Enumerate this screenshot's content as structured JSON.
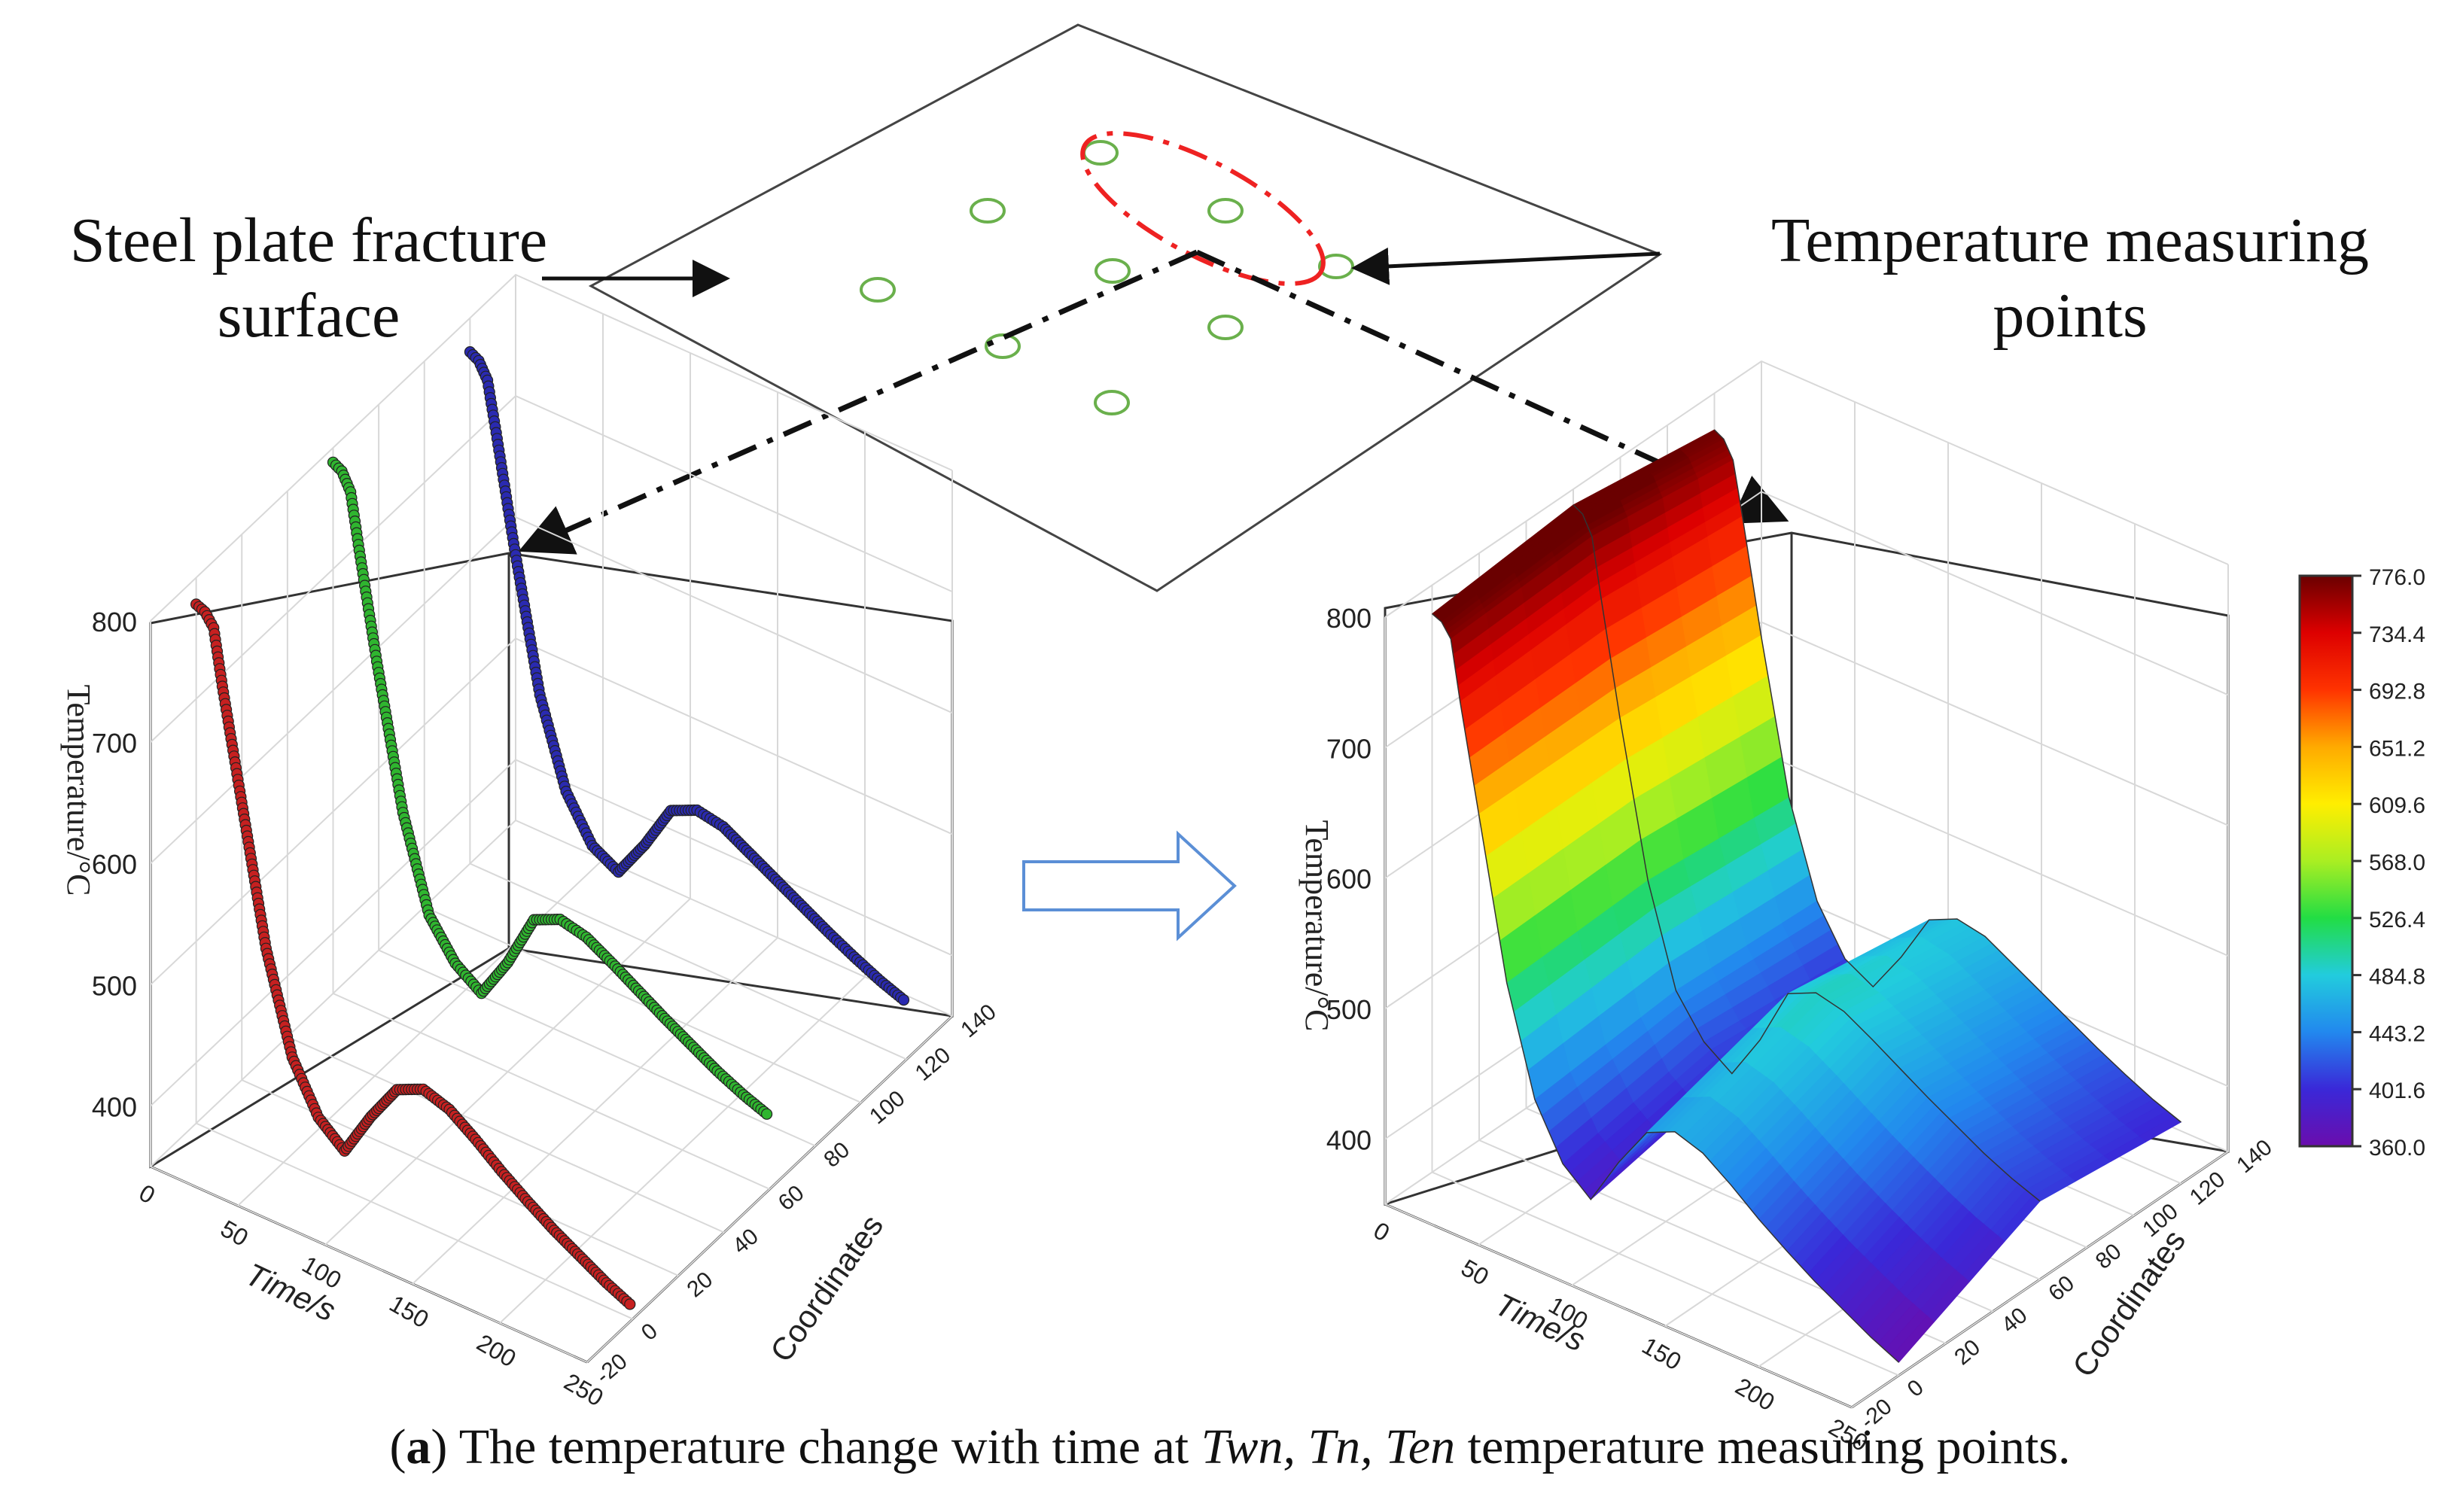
{
  "labels": {
    "left_annotation_line1": "Steel plate fracture",
    "left_annotation_line2": "surface",
    "right_annotation_line1": "Temperature measuring",
    "right_annotation_line2": "points"
  },
  "caption": {
    "open_paren": "(",
    "letter": "a",
    "close_paren": ") The temperature change with time at ",
    "points": "Twn, Tn, Ten",
    "rest": " temperature measuring points."
  },
  "colors": {
    "red_series": "#c62020",
    "green_series": "#2fb52f",
    "blue_series": "#2a2ab0",
    "plate_edge": "#444444",
    "measuring_point": "#6ab04c",
    "highlight_ellipse": "#ee2222",
    "flow_arrow": "#5b8fd6"
  },
  "chart_data": [
    {
      "type": "scatter3d",
      "title": "",
      "xlabel": "Time/s",
      "ylabel": "Coordinates",
      "zlabel": "Temperature/°C",
      "xlim": [
        0,
        250
      ],
      "ylim": [
        -20,
        140
      ],
      "zlim": [
        350,
        800
      ],
      "x_ticks": [
        "0",
        "50",
        "100",
        "150",
        "200",
        "250"
      ],
      "y_ticks": [
        "-20",
        "0",
        "20",
        "40",
        "60",
        "80",
        "100",
        "120",
        "140"
      ],
      "z_ticks": [
        "400",
        "500",
        "600",
        "700",
        "800"
      ],
      "series": [
        {
          "name": "Twn",
          "coordinate": 0,
          "time": [
            0,
            5,
            10,
            15,
            25,
            40,
            55,
            70,
            85,
            100,
            115,
            130,
            145,
            160,
            175,
            190,
            205,
            220,
            235,
            250
          ],
          "temperature": [
            778,
            775,
            765,
            720,
            640,
            520,
            440,
            400,
            382,
            420,
            452,
            462,
            455,
            440,
            423,
            408,
            394,
            382,
            370,
            360
          ]
        },
        {
          "name": "Tn",
          "coordinate": 60,
          "time": [
            0,
            5,
            10,
            15,
            25,
            40,
            55,
            70,
            85,
            100,
            115,
            130,
            145,
            160,
            175,
            190,
            205,
            220,
            235,
            250
          ],
          "temperature": [
            788,
            784,
            770,
            725,
            640,
            525,
            450,
            420,
            405,
            440,
            485,
            495,
            490,
            478,
            465,
            452,
            440,
            428,
            418,
            410
          ]
        },
        {
          "name": "Ten",
          "coordinate": 120,
          "time": [
            0,
            5,
            10,
            15,
            25,
            40,
            55,
            70,
            85,
            100,
            115,
            130,
            145,
            160,
            175,
            190,
            205,
            220,
            235,
            250
          ],
          "temperature": [
            772,
            768,
            755,
            715,
            630,
            515,
            445,
            410,
            398,
            430,
            468,
            478,
            474,
            462,
            450,
            438,
            426,
            415,
            405,
            397
          ]
        }
      ]
    },
    {
      "type": "surface3d",
      "title": "",
      "xlabel": "Time/s",
      "ylabel": "Coordinates",
      "zlabel": "Temperature/°C",
      "xlim": [
        0,
        250
      ],
      "ylim": [
        -20,
        140
      ],
      "zlim": [
        350,
        800
      ],
      "x_ticks": [
        "0",
        "50",
        "100",
        "150",
        "200",
        "250"
      ],
      "y_ticks": [
        "-20",
        "0",
        "20",
        "40",
        "60",
        "80",
        "100",
        "120",
        "140"
      ],
      "z_ticks": [
        "400",
        "500",
        "600",
        "700",
        "800"
      ],
      "colorbar": {
        "min": 360.0,
        "max": 776.0,
        "ticks": [
          "776.0",
          "734.4",
          "692.8",
          "651.2",
          "609.6",
          "568.0",
          "526.4",
          "484.8",
          "443.2",
          "401.6",
          "360.0"
        ]
      },
      "coordinates": [
        0,
        60,
        120
      ],
      "time": [
        0,
        5,
        10,
        15,
        25,
        40,
        55,
        70,
        85,
        100,
        115,
        130,
        145,
        160,
        175,
        190,
        205,
        220,
        235,
        250
      ],
      "temperature": [
        [
          778,
          775,
          765,
          720,
          640,
          520,
          440,
          400,
          382,
          420,
          452,
          462,
          455,
          440,
          423,
          408,
          394,
          382,
          370,
          360
        ],
        [
          788,
          784,
          770,
          725,
          640,
          525,
          450,
          420,
          405,
          440,
          485,
          495,
          490,
          478,
          465,
          452,
          440,
          428,
          418,
          410
        ],
        [
          772,
          768,
          755,
          715,
          630,
          515,
          445,
          410,
          398,
          430,
          468,
          478,
          474,
          462,
          450,
          438,
          426,
          415,
          405,
          397
        ]
      ]
    }
  ]
}
